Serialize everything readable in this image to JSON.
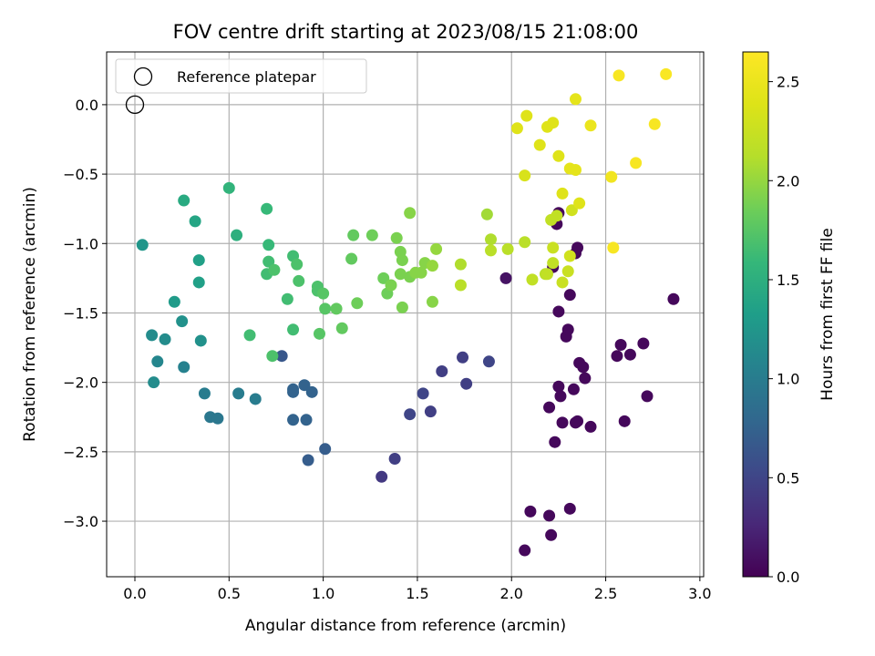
{
  "chart_data": {
    "type": "scatter",
    "title": "FOV centre drift starting at 2023/08/15 21:08:00",
    "xlabel": "Angular distance from reference (arcmin)",
    "ylabel": "Rotation from reference (arcmin)",
    "xlim": [
      -0.15,
      3.02
    ],
    "ylim": [
      -3.4,
      0.38
    ],
    "xticks": [
      0.0,
      0.5,
      1.0,
      1.5,
      2.0,
      2.5,
      3.0
    ],
    "xtick_labels": [
      "0.0",
      "0.5",
      "1.0",
      "1.5",
      "2.0",
      "2.5",
      "3.0"
    ],
    "yticks": [
      0.0,
      -0.5,
      -1.0,
      -1.5,
      -2.0,
      -2.5,
      -3.0
    ],
    "ytick_labels": [
      "0.0",
      "−0.5",
      "−1.0",
      "−1.5",
      "−2.0",
      "−2.5",
      "−3.0"
    ],
    "grid": true,
    "legend": {
      "position": "top-left",
      "entries": [
        "Reference platepar"
      ]
    },
    "reference_point": {
      "x": 0.0,
      "y": 0.0
    },
    "colorbar": {
      "label": "Hours from first FF file",
      "colormap": "viridis",
      "range": [
        0.0,
        2.65
      ],
      "ticks": [
        0.0,
        0.5,
        1.0,
        1.5,
        2.0,
        2.5
      ],
      "tick_labels": [
        "0.0",
        "0.5",
        "1.0",
        "1.5",
        "2.0",
        "2.5"
      ]
    },
    "points": [
      {
        "x": 2.07,
        "y": -3.21,
        "c": 0.05
      },
      {
        "x": 2.1,
        "y": -2.93,
        "c": 0.05
      },
      {
        "x": 2.2,
        "y": -2.96,
        "c": 0.05
      },
      {
        "x": 2.21,
        "y": -3.1,
        "c": 0.05
      },
      {
        "x": 2.31,
        "y": -2.91,
        "c": 0.05
      },
      {
        "x": 2.23,
        "y": -2.43,
        "c": 0.05
      },
      {
        "x": 2.2,
        "y": -2.18,
        "c": 0.05
      },
      {
        "x": 2.27,
        "y": -2.29,
        "c": 0.05
      },
      {
        "x": 2.25,
        "y": -2.03,
        "c": 0.05
      },
      {
        "x": 2.26,
        "y": -2.1,
        "c": 0.05
      },
      {
        "x": 2.33,
        "y": -2.05,
        "c": 0.05
      },
      {
        "x": 2.34,
        "y": -2.29,
        "c": 0.05
      },
      {
        "x": 2.35,
        "y": -2.28,
        "c": 0.05
      },
      {
        "x": 2.39,
        "y": -1.97,
        "c": 0.05
      },
      {
        "x": 2.42,
        "y": -2.32,
        "c": 0.05
      },
      {
        "x": 2.6,
        "y": -2.28,
        "c": 0.05
      },
      {
        "x": 2.72,
        "y": -2.1,
        "c": 0.05
      },
      {
        "x": 2.36,
        "y": -1.86,
        "c": 0.05
      },
      {
        "x": 2.38,
        "y": -1.89,
        "c": 0.05
      },
      {
        "x": 2.29,
        "y": -1.67,
        "c": 0.05
      },
      {
        "x": 2.3,
        "y": -1.62,
        "c": 0.05
      },
      {
        "x": 2.25,
        "y": -1.49,
        "c": 0.05
      },
      {
        "x": 2.31,
        "y": -1.37,
        "c": 0.05
      },
      {
        "x": 2.56,
        "y": -1.81,
        "c": 0.05
      },
      {
        "x": 2.58,
        "y": -1.73,
        "c": 0.05
      },
      {
        "x": 2.63,
        "y": -1.8,
        "c": 0.05
      },
      {
        "x": 2.7,
        "y": -1.72,
        "c": 0.05
      },
      {
        "x": 2.86,
        "y": -1.4,
        "c": 0.05
      },
      {
        "x": 2.34,
        "y": -1.07,
        "c": 0.05
      },
      {
        "x": 2.35,
        "y": -1.03,
        "c": 0.05
      },
      {
        "x": 2.25,
        "y": -0.78,
        "c": 0.05
      },
      {
        "x": 2.24,
        "y": -0.86,
        "c": 0.05
      },
      {
        "x": 2.22,
        "y": -1.17,
        "c": 0.05
      },
      {
        "x": 1.97,
        "y": -1.25,
        "c": 0.12
      },
      {
        "x": 1.31,
        "y": -2.68,
        "c": 0.4
      },
      {
        "x": 1.38,
        "y": -2.55,
        "c": 0.45
      },
      {
        "x": 1.46,
        "y": -2.23,
        "c": 0.5
      },
      {
        "x": 1.53,
        "y": -2.08,
        "c": 0.5
      },
      {
        "x": 1.57,
        "y": -2.21,
        "c": 0.45
      },
      {
        "x": 1.63,
        "y": -1.92,
        "c": 0.45
      },
      {
        "x": 1.74,
        "y": -1.82,
        "c": 0.45
      },
      {
        "x": 1.76,
        "y": -2.01,
        "c": 0.45
      },
      {
        "x": 1.88,
        "y": -1.85,
        "c": 0.5
      },
      {
        "x": 0.78,
        "y": -1.81,
        "c": 0.65
      },
      {
        "x": 0.84,
        "y": -2.05,
        "c": 0.75
      },
      {
        "x": 0.84,
        "y": -2.07,
        "c": 0.75
      },
      {
        "x": 0.84,
        "y": -2.27,
        "c": 0.75
      },
      {
        "x": 0.9,
        "y": -2.02,
        "c": 0.75
      },
      {
        "x": 0.91,
        "y": -2.27,
        "c": 0.75
      },
      {
        "x": 0.94,
        "y": -2.07,
        "c": 0.75
      },
      {
        "x": 0.92,
        "y": -2.56,
        "c": 0.7
      },
      {
        "x": 1.01,
        "y": -2.48,
        "c": 0.7
      },
      {
        "x": 0.4,
        "y": -2.25,
        "c": 0.95
      },
      {
        "x": 0.44,
        "y": -2.26,
        "c": 0.95
      },
      {
        "x": 0.37,
        "y": -2.08,
        "c": 1.0
      },
      {
        "x": 0.55,
        "y": -2.08,
        "c": 1.0
      },
      {
        "x": 0.64,
        "y": -2.12,
        "c": 1.0
      },
      {
        "x": 0.26,
        "y": -1.89,
        "c": 1.05
      },
      {
        "x": 0.1,
        "y": -2.0,
        "c": 1.15
      },
      {
        "x": 0.12,
        "y": -1.85,
        "c": 1.1
      },
      {
        "x": 0.09,
        "y": -1.66,
        "c": 1.15
      },
      {
        "x": 0.16,
        "y": -1.69,
        "c": 1.15
      },
      {
        "x": 0.25,
        "y": -1.56,
        "c": 1.2
      },
      {
        "x": 0.35,
        "y": -1.7,
        "c": 1.2
      },
      {
        "x": 0.21,
        "y": -1.42,
        "c": 1.3
      },
      {
        "x": 0.34,
        "y": -1.28,
        "c": 1.35
      },
      {
        "x": 0.34,
        "y": -1.12,
        "c": 1.35
      },
      {
        "x": 0.04,
        "y": -1.01,
        "c": 1.25
      },
      {
        "x": 0.32,
        "y": -0.84,
        "c": 1.4
      },
      {
        "x": 0.26,
        "y": -0.69,
        "c": 1.45
      },
      {
        "x": 0.54,
        "y": -0.94,
        "c": 1.5
      },
      {
        "x": 0.5,
        "y": -0.6,
        "c": 1.55
      },
      {
        "x": 0.61,
        "y": -1.66,
        "c": 1.65
      },
      {
        "x": 0.73,
        "y": -1.81,
        "c": 1.7
      },
      {
        "x": 0.7,
        "y": -0.75,
        "c": 1.6
      },
      {
        "x": 0.71,
        "y": -1.01,
        "c": 1.6
      },
      {
        "x": 0.7,
        "y": -1.22,
        "c": 1.65
      },
      {
        "x": 0.71,
        "y": -1.13,
        "c": 1.65
      },
      {
        "x": 0.74,
        "y": -1.19,
        "c": 1.7
      },
      {
        "x": 0.81,
        "y": -1.4,
        "c": 1.65
      },
      {
        "x": 0.84,
        "y": -1.09,
        "c": 1.65
      },
      {
        "x": 0.86,
        "y": -1.15,
        "c": 1.7
      },
      {
        "x": 0.87,
        "y": -1.27,
        "c": 1.7
      },
      {
        "x": 0.84,
        "y": -1.62,
        "c": 1.65
      },
      {
        "x": 0.97,
        "y": -1.31,
        "c": 1.7
      },
      {
        "x": 0.97,
        "y": -1.34,
        "c": 1.7
      },
      {
        "x": 1.0,
        "y": -1.36,
        "c": 1.75
      },
      {
        "x": 0.98,
        "y": -1.65,
        "c": 1.75
      },
      {
        "x": 1.01,
        "y": -1.47,
        "c": 1.75
      },
      {
        "x": 1.07,
        "y": -1.47,
        "c": 1.8
      },
      {
        "x": 1.1,
        "y": -1.61,
        "c": 1.8
      },
      {
        "x": 1.15,
        "y": -1.11,
        "c": 1.8
      },
      {
        "x": 1.16,
        "y": -0.94,
        "c": 1.8
      },
      {
        "x": 1.18,
        "y": -1.43,
        "c": 1.85
      },
      {
        "x": 1.26,
        "y": -0.94,
        "c": 1.85
      },
      {
        "x": 1.32,
        "y": -1.25,
        "c": 1.85
      },
      {
        "x": 1.34,
        "y": -1.36,
        "c": 1.85
      },
      {
        "x": 1.36,
        "y": -1.3,
        "c": 1.9
      },
      {
        "x": 1.39,
        "y": -0.96,
        "c": 1.9
      },
      {
        "x": 1.41,
        "y": -1.06,
        "c": 1.9
      },
      {
        "x": 1.41,
        "y": -1.22,
        "c": 1.9
      },
      {
        "x": 1.42,
        "y": -1.12,
        "c": 1.9
      },
      {
        "x": 1.42,
        "y": -1.46,
        "c": 1.9
      },
      {
        "x": 1.46,
        "y": -0.78,
        "c": 1.95
      },
      {
        "x": 1.46,
        "y": -1.24,
        "c": 1.9
      },
      {
        "x": 1.49,
        "y": -1.21,
        "c": 1.95
      },
      {
        "x": 1.52,
        "y": -1.21,
        "c": 1.95
      },
      {
        "x": 1.54,
        "y": -1.14,
        "c": 1.95
      },
      {
        "x": 1.58,
        "y": -1.42,
        "c": 1.95
      },
      {
        "x": 1.58,
        "y": -1.16,
        "c": 2.0
      },
      {
        "x": 1.6,
        "y": -1.04,
        "c": 2.0
      },
      {
        "x": 1.73,
        "y": -1.15,
        "c": 2.1
      },
      {
        "x": 1.73,
        "y": -1.3,
        "c": 2.15
      },
      {
        "x": 1.87,
        "y": -0.79,
        "c": 2.05
      },
      {
        "x": 1.89,
        "y": -0.97,
        "c": 2.1
      },
      {
        "x": 1.89,
        "y": -1.05,
        "c": 2.15
      },
      {
        "x": 1.98,
        "y": -1.04,
        "c": 2.15
      },
      {
        "x": 2.07,
        "y": -0.99,
        "c": 2.15
      },
      {
        "x": 2.11,
        "y": -1.26,
        "c": 2.2
      },
      {
        "x": 2.18,
        "y": -1.22,
        "c": 2.15
      },
      {
        "x": 2.19,
        "y": -1.22,
        "c": 2.2
      },
      {
        "x": 2.22,
        "y": -1.14,
        "c": 2.2
      },
      {
        "x": 2.21,
        "y": -0.83,
        "c": 2.2
      },
      {
        "x": 2.24,
        "y": -0.8,
        "c": 2.2
      },
      {
        "x": 2.22,
        "y": -1.03,
        "c": 2.25
      },
      {
        "x": 2.27,
        "y": -1.28,
        "c": 2.25
      },
      {
        "x": 2.3,
        "y": -1.2,
        "c": 2.25
      },
      {
        "x": 2.31,
        "y": -1.09,
        "c": 2.3
      },
      {
        "x": 2.32,
        "y": -0.76,
        "c": 2.3
      },
      {
        "x": 2.27,
        "y": -0.64,
        "c": 2.4
      },
      {
        "x": 2.36,
        "y": -0.71,
        "c": 2.4
      },
      {
        "x": 2.07,
        "y": -0.51,
        "c": 2.35
      },
      {
        "x": 2.03,
        "y": -0.17,
        "c": 2.4
      },
      {
        "x": 2.08,
        "y": -0.08,
        "c": 2.4
      },
      {
        "x": 2.15,
        "y": -0.29,
        "c": 2.4
      },
      {
        "x": 2.19,
        "y": -0.16,
        "c": 2.4
      },
      {
        "x": 2.22,
        "y": -0.13,
        "c": 2.4
      },
      {
        "x": 2.25,
        "y": -0.37,
        "c": 2.4
      },
      {
        "x": 2.31,
        "y": -0.46,
        "c": 2.45
      },
      {
        "x": 2.34,
        "y": -0.47,
        "c": 2.45
      },
      {
        "x": 2.34,
        "y": 0.04,
        "c": 2.45
      },
      {
        "x": 2.42,
        "y": -0.15,
        "c": 2.5
      },
      {
        "x": 2.53,
        "y": -0.52,
        "c": 2.55
      },
      {
        "x": 2.54,
        "y": -1.03,
        "c": 2.6
      },
      {
        "x": 2.57,
        "y": 0.21,
        "c": 2.6
      },
      {
        "x": 2.66,
        "y": -0.42,
        "c": 2.6
      },
      {
        "x": 2.76,
        "y": -0.14,
        "c": 2.6
      },
      {
        "x": 2.82,
        "y": 0.22,
        "c": 2.62
      }
    ]
  }
}
